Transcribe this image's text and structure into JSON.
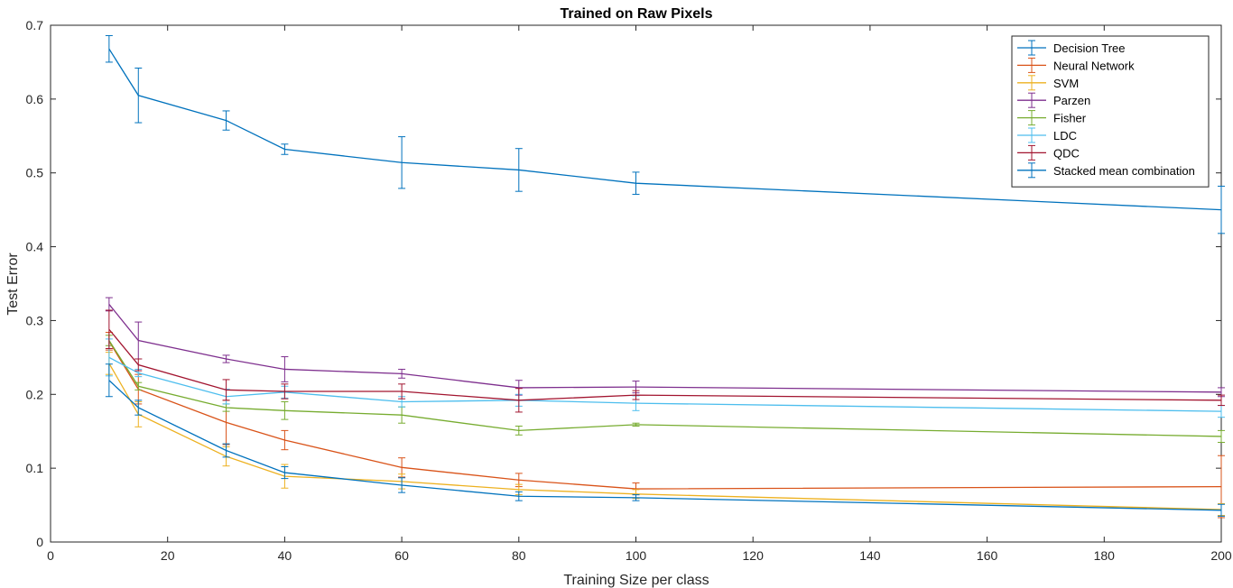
{
  "chart_data": {
    "type": "line",
    "title": "Trained on Raw Pixels",
    "xlabel": "Training Size per class",
    "ylabel": "Test Error",
    "xlim": [
      0,
      200
    ],
    "ylim": [
      0,
      0.7
    ],
    "xticks": [
      0,
      20,
      40,
      60,
      80,
      100,
      120,
      140,
      160,
      180,
      200
    ],
    "yticks": [
      0,
      0.1,
      0.2,
      0.3,
      0.4,
      0.5,
      0.6,
      0.7
    ],
    "xtick_labels": [
      "0",
      "20",
      "40",
      "60",
      "80",
      "100",
      "120",
      "140",
      "160",
      "180",
      "200"
    ],
    "ytick_labels": [
      "0",
      "0.1",
      "0.2",
      "0.3",
      "0.4",
      "0.5",
      "0.6",
      "0.7"
    ],
    "grid": false,
    "legend_position": "top-right",
    "x": [
      10,
      15,
      30,
      40,
      60,
      80,
      100,
      200
    ],
    "series": [
      {
        "name": "Decision Tree",
        "color": "#0072BD",
        "values": [
          0.668,
          0.605,
          0.571,
          0.532,
          0.514,
          0.504,
          0.486,
          0.45
        ],
        "errors": [
          0.018,
          0.037,
          0.013,
          0.007,
          0.035,
          0.029,
          0.015,
          0.032
        ]
      },
      {
        "name": "Neural Network",
        "color": "#D95319",
        "values": [
          0.272,
          0.207,
          0.162,
          0.138,
          0.101,
          0.084,
          0.072,
          0.075
        ],
        "errors": [
          0.012,
          0.02,
          0.03,
          0.013,
          0.013,
          0.009,
          0.008,
          0.042
        ]
      },
      {
        "name": "SVM",
        "color": "#EDB120",
        "values": [
          0.242,
          0.173,
          0.116,
          0.089,
          0.082,
          0.071,
          0.065,
          0.044
        ],
        "errors": [
          0.015,
          0.017,
          0.013,
          0.016,
          0.01,
          0.007,
          0.006,
          0.008
        ]
      },
      {
        "name": "Parzen",
        "color": "#7E2F8E",
        "values": [
          0.322,
          0.273,
          0.248,
          0.234,
          0.228,
          0.209,
          0.21,
          0.203
        ],
        "errors": [
          0.009,
          0.025,
          0.005,
          0.017,
          0.006,
          0.01,
          0.008,
          0.006
        ]
      },
      {
        "name": "Fisher",
        "color": "#77AC30",
        "values": [
          0.273,
          0.211,
          0.182,
          0.178,
          0.172,
          0.151,
          0.159,
          0.143
        ],
        "errors": [
          0.007,
          0.005,
          0.005,
          0.012,
          0.011,
          0.006,
          0.002,
          0.008
        ]
      },
      {
        "name": "LDC",
        "color": "#4DBEEE",
        "values": [
          0.25,
          0.229,
          0.197,
          0.203,
          0.19,
          0.192,
          0.188,
          0.177
        ],
        "errors": [
          0.025,
          0.005,
          0.01,
          0.008,
          0.007,
          0.008,
          0.01,
          0.008
        ]
      },
      {
        "name": "QDC",
        "color": "#A2142F",
        "values": [
          0.288,
          0.24,
          0.206,
          0.204,
          0.204,
          0.192,
          0.199,
          0.192
        ],
        "errors": [
          0.026,
          0.008,
          0.014,
          0.01,
          0.01,
          0.016,
          0.006,
          0.007
        ]
      },
      {
        "name": "Stacked mean combination",
        "color": "#0072BD",
        "values": [
          0.219,
          0.182,
          0.124,
          0.094,
          0.077,
          0.062,
          0.06,
          0.043
        ],
        "errors": [
          0.022,
          0.01,
          0.009,
          0.008,
          0.01,
          0.006,
          0.004,
          0.008
        ]
      }
    ]
  }
}
